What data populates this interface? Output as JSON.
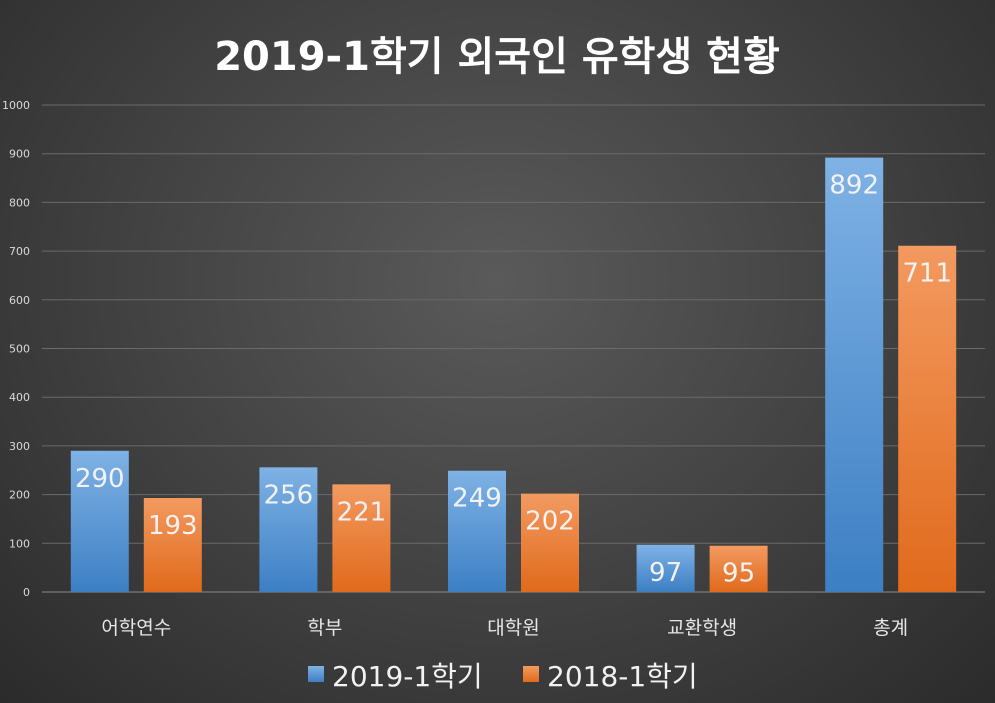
{
  "chart_data": {
    "type": "bar",
    "title": "2019-1학기 외국인 유학생 현황",
    "categories": [
      "어학연수",
      "학부",
      "대학원",
      "교환학생",
      "총계"
    ],
    "series": [
      {
        "name": "2019-1학기",
        "values": [
          290,
          256,
          249,
          97,
          892
        ],
        "color": "#5b9bd5"
      },
      {
        "name": "2018-1학기",
        "values": [
          193,
          221,
          202,
          95,
          711
        ],
        "color": "#ed7d31"
      }
    ],
    "ylim": [
      0,
      1000
    ],
    "yticks": [
      0,
      100,
      200,
      300,
      400,
      500,
      600,
      700,
      800,
      900,
      1000
    ],
    "grid": true,
    "legend": "bottom",
    "data_labels": "inside-end"
  }
}
